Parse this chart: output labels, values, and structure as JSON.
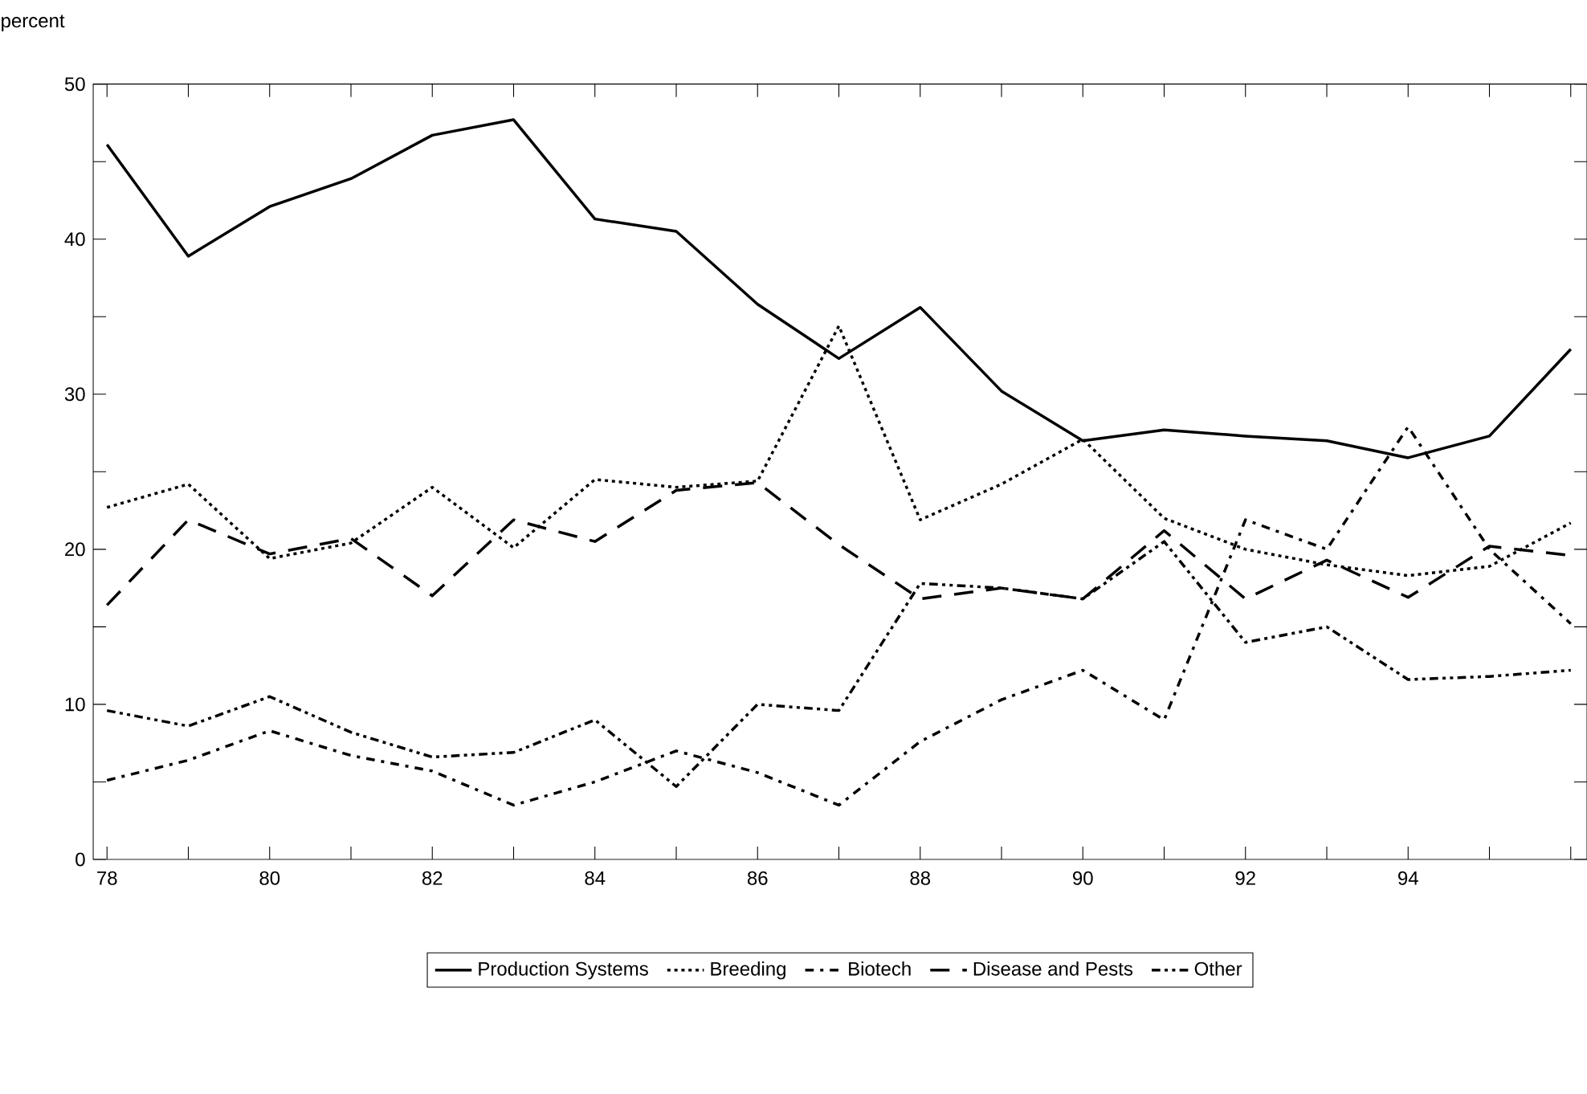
{
  "chart_data": {
    "type": "line",
    "ylabel": "percent",
    "x": [
      78,
      79,
      80,
      81,
      82,
      83,
      84,
      85,
      86,
      87,
      88,
      89,
      90,
      91,
      92,
      93,
      94,
      95,
      96
    ],
    "xlim": [
      77.83,
      96.2
    ],
    "xticks": [
      78,
      {
        "value": 79,
        "label": null
      },
      80,
      {
        "value": 81,
        "label": null
      },
      82,
      {
        "value": 83,
        "label": null
      },
      84,
      {
        "value": 85,
        "label": null
      },
      86,
      {
        "value": 87,
        "label": null
      },
      88,
      {
        "value": 89,
        "label": null
      },
      90,
      {
        "value": 91,
        "label": null
      },
      92,
      {
        "value": 93,
        "label": null
      },
      94,
      {
        "value": 95,
        "label": null
      },
      {
        "value": 96,
        "label": null
      }
    ],
    "ylim": [
      0,
      50
    ],
    "yticks": [
      0,
      {
        "value": 5,
        "label": null
      },
      10,
      {
        "value": 15,
        "label": null
      },
      20,
      {
        "value": 25,
        "label": null
      },
      30,
      {
        "value": 35,
        "label": null
      },
      40,
      {
        "value": 45,
        "label": null
      },
      50
    ],
    "legend": "bottom",
    "grid": false,
    "series": [
      {
        "name": "Production Systems",
        "color": "#000000",
        "line_style": "solid",
        "values": [
          46.1,
          38.9,
          42.1,
          43.9,
          46.7,
          47.7,
          41.3,
          40.5,
          35.8,
          32.3,
          35.6,
          30.2,
          27.0,
          27.7,
          27.3,
          27.0,
          25.9,
          27.3,
          32.9
        ]
      },
      {
        "name": "Breeding",
        "color": "#000000",
        "line_style": "dotted",
        "values": [
          22.7,
          24.2,
          19.4,
          20.4,
          24.0,
          20.1,
          24.5,
          24.0,
          24.4,
          34.4,
          21.9,
          24.2,
          27.1,
          22.0,
          20.0,
          19.0,
          18.3,
          18.9,
          21.7
        ]
      },
      {
        "name": "Biotech",
        "color": "#000000",
        "line_style": "dashdotted",
        "values": [
          5.1,
          6.4,
          8.3,
          6.7,
          5.7,
          3.5,
          5.0,
          7.0,
          5.6,
          3.5,
          7.6,
          10.3,
          12.2,
          9.0,
          21.9,
          20.0,
          27.9,
          20.0,
          15.2
        ]
      },
      {
        "name": "Disease and Pests",
        "color": "#000000",
        "line_style": "dashed",
        "values": [
          16.4,
          21.9,
          19.7,
          20.7,
          17.0,
          21.9,
          20.5,
          23.8,
          24.3,
          20.3,
          16.8,
          17.5,
          16.8,
          21.2,
          16.8,
          19.3,
          16.9,
          20.2,
          19.6
        ]
      },
      {
        "name": "Other",
        "color": "#000000",
        "line_style": "dashdotdotted",
        "values": [
          9.6,
          8.6,
          10.5,
          8.2,
          6.6,
          6.9,
          9.0,
          4.7,
          10.0,
          9.6,
          17.8,
          17.5,
          16.8,
          20.5,
          14.0,
          15.0,
          11.6,
          11.8,
          12.2
        ]
      }
    ]
  }
}
